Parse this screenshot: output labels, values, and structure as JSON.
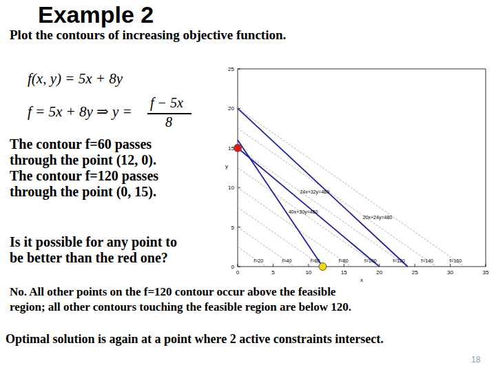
{
  "slide": {
    "title": "Example 2",
    "subtitle": "Plot the contours of increasing objective function.",
    "formula1": "f(x, y) = 5x + 8y",
    "formula2": {
      "left": "f = 5x + 8y ⇒ y =",
      "numerator": "f − 5x",
      "denominator": "8"
    },
    "text1": [
      "The contour f=60 passes",
      "through the point (12, 0).",
      "The contour f=120 passes",
      "through the point (0, 15)."
    ],
    "question": [
      "Is it possible for any point to",
      "be better than the red one?"
    ],
    "answer": [
      "No. All other points on the f=120 contour occur above the feasible",
      "region; all other contours touching the feasible region are below 120."
    ],
    "conclusion": "Optimal solution is again at a point where 2 active constraints intersect.",
    "page_number": "18"
  },
  "chart_data": {
    "type": "line",
    "x_label": "x",
    "y_label": "y",
    "xlim": [
      0,
      35
    ],
    "ylim": [
      0,
      25
    ],
    "xticks": [
      0,
      5,
      10,
      15,
      20,
      25,
      30,
      35
    ],
    "yticks": [
      0,
      5,
      10,
      15,
      20,
      25
    ],
    "series": [
      {
        "name": "24x+32y=480",
        "color": "#1f1fa8",
        "x": [
          0,
          20
        ],
        "values": [
          15,
          0
        ]
      },
      {
        "name": "20x+24y=480",
        "color": "#1f1fa8",
        "x": [
          0,
          24
        ],
        "values": [
          20,
          0
        ]
      },
      {
        "name": "40x+30y=480",
        "color": "#1f1fa8",
        "x": [
          0,
          12
        ],
        "values": [
          16,
          0
        ]
      }
    ],
    "contours": [
      {
        "value": 20,
        "label": "f=20"
      },
      {
        "value": 40,
        "label": "f=40"
      },
      {
        "value": 60,
        "label": "f=60"
      },
      {
        "value": 80,
        "label": "f=80"
      },
      {
        "value": 100,
        "label": "f=100"
      },
      {
        "value": 120,
        "label": "f=120"
      },
      {
        "value": 140,
        "label": "f=140"
      },
      {
        "value": 160,
        "label": "f=160"
      }
    ],
    "contour_color": "#9a9a9a",
    "points": [
      {
        "x": 0,
        "y": 15,
        "color": "#e01818"
      },
      {
        "x": 12,
        "y": 0,
        "color": "#f2d600"
      }
    ]
  }
}
